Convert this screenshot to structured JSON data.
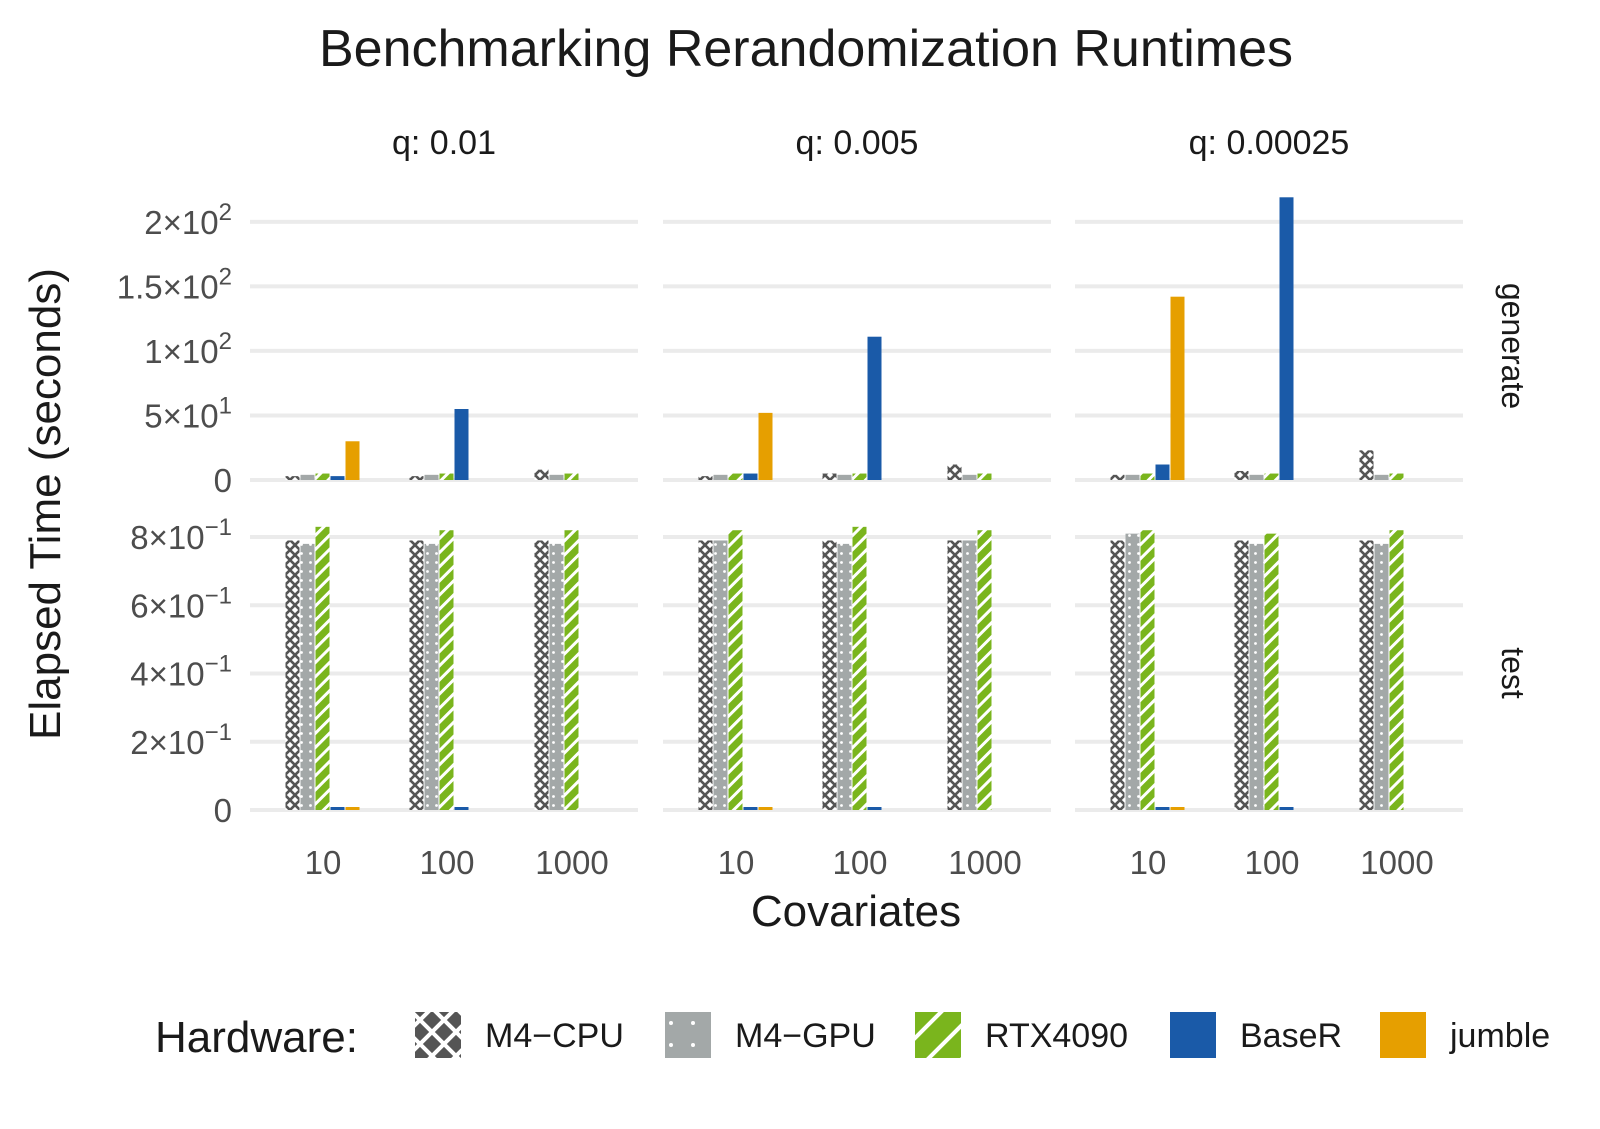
{
  "chart_data": {
    "type": "bar",
    "title": "Benchmarking Rerandomization Runtimes",
    "xlabel": "Covariates",
    "ylabel": "Elapsed Time (seconds)",
    "categories": [
      "10",
      "100",
      "1000"
    ],
    "facet_cols": [
      {
        "label": "q:  0.01",
        "q": "0.01"
      },
      {
        "label": "q:  0.005",
        "q": "0.005"
      },
      {
        "label": "q:  0.00025",
        "q": "0.00025"
      }
    ],
    "facet_rows": [
      {
        "label": "generate",
        "ylim": [
          0,
          220
        ],
        "ticks": [
          {
            "value": 0,
            "base": "0",
            "exp": ""
          },
          {
            "value": 50,
            "base": "5×10",
            "exp": "1"
          },
          {
            "value": 100,
            "base": "1×10",
            "exp": "2"
          },
          {
            "value": 150,
            "base": "1.5×10",
            "exp": "2"
          },
          {
            "value": 200,
            "base": "2×10",
            "exp": "2"
          }
        ]
      },
      {
        "label": "test",
        "ylim": [
          0,
          0.85
        ],
        "ticks": [
          {
            "value": 0,
            "base": "0",
            "exp": ""
          },
          {
            "value": 0.2,
            "base": "2×10",
            "exp": "−1"
          },
          {
            "value": 0.4,
            "base": "4×10",
            "exp": "−1"
          },
          {
            "value": 0.6,
            "base": "6×10",
            "exp": "−1"
          },
          {
            "value": 0.8,
            "base": "8×10",
            "exp": "−1"
          }
        ]
      }
    ],
    "legend": {
      "title": "Hardware:",
      "position": "bottom"
    },
    "series": [
      {
        "name": "M4−CPU",
        "pattern": "crosshatch",
        "color": "#555555"
      },
      {
        "name": "M4−GPU",
        "pattern": "dots",
        "color": "#a3a8a8"
      },
      {
        "name": "RTX4090",
        "pattern": "stripes",
        "color": "#7ab51d"
      },
      {
        "name": "BaseR",
        "pattern": "solid",
        "color": "#1a5aa8"
      },
      {
        "name": "jumble",
        "pattern": "solid",
        "color": "#e69f00"
      }
    ],
    "values": {
      "generate": {
        "0.01": {
          "10": [
            3,
            4,
            5,
            3,
            30
          ],
          "100": [
            3,
            4,
            5,
            55,
            null
          ],
          "1000": [
            8,
            4,
            5,
            null,
            null
          ]
        },
        "0.005": {
          "10": [
            3,
            4,
            5,
            5,
            52
          ],
          "100": [
            5,
            4,
            5,
            111,
            null
          ],
          "1000": [
            12,
            4,
            5,
            null,
            null
          ]
        },
        "0.00025": {
          "10": [
            4,
            4,
            5,
            12,
            142
          ],
          "100": [
            7,
            4,
            5,
            219,
            null
          ],
          "1000": [
            23,
            4,
            5,
            null,
            null
          ]
        }
      },
      "test": {
        "0.01": {
          "10": [
            0.79,
            0.78,
            0.83,
            0.004,
            0.004
          ],
          "100": [
            0.79,
            0.78,
            0.82,
            0.004,
            null
          ],
          "1000": [
            0.79,
            0.78,
            0.82,
            null,
            null
          ]
        },
        "0.005": {
          "10": [
            0.79,
            0.79,
            0.82,
            0.004,
            0.004
          ],
          "100": [
            0.79,
            0.78,
            0.83,
            0.004,
            null
          ],
          "1000": [
            0.79,
            0.79,
            0.82,
            null,
            null
          ]
        },
        "0.00025": {
          "10": [
            0.79,
            0.81,
            0.82,
            0.004,
            0.004
          ],
          "100": [
            0.79,
            0.78,
            0.81,
            0.004,
            null
          ],
          "1000": [
            0.79,
            0.78,
            0.82,
            null,
            null
          ]
        }
      }
    }
  }
}
